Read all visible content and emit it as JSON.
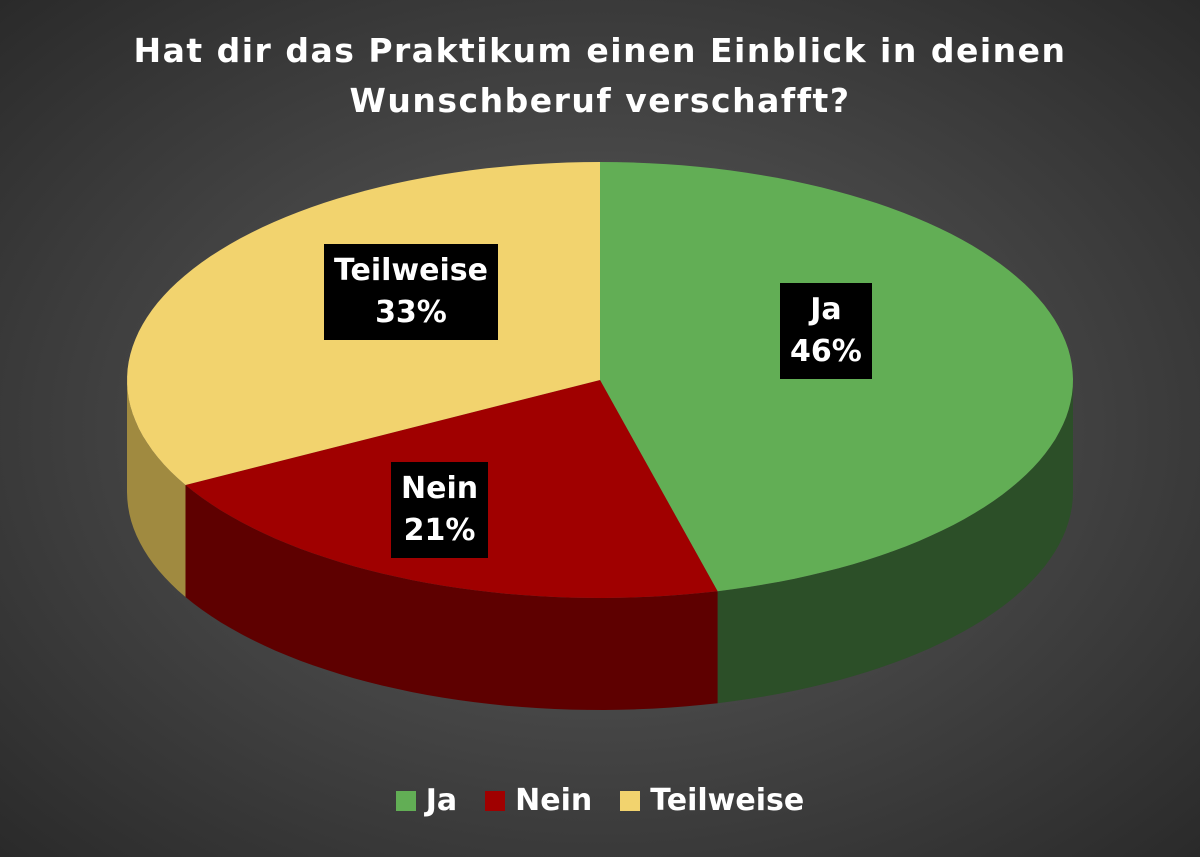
{
  "chart_data": {
    "type": "pie",
    "title_line1": "Hat dir das Praktikum einen Einblick in deinen",
    "title_line2": "Wunschberuf verschafft?",
    "slices": [
      {
        "label": "Ja",
        "value": 46,
        "value_label": "46%",
        "color": "#62ae55",
        "side_color": "#2c4f28"
      },
      {
        "label": "Nein",
        "value": 21,
        "value_label": "21%",
        "color": "#a00000",
        "side_color": "#5e0000"
      },
      {
        "label": "Teilweise",
        "value": 33,
        "value_label": "33%",
        "color": "#f2d36e",
        "side_color": "#a08a40"
      }
    ],
    "legend_position": "bottom",
    "style": "3d-pie"
  }
}
